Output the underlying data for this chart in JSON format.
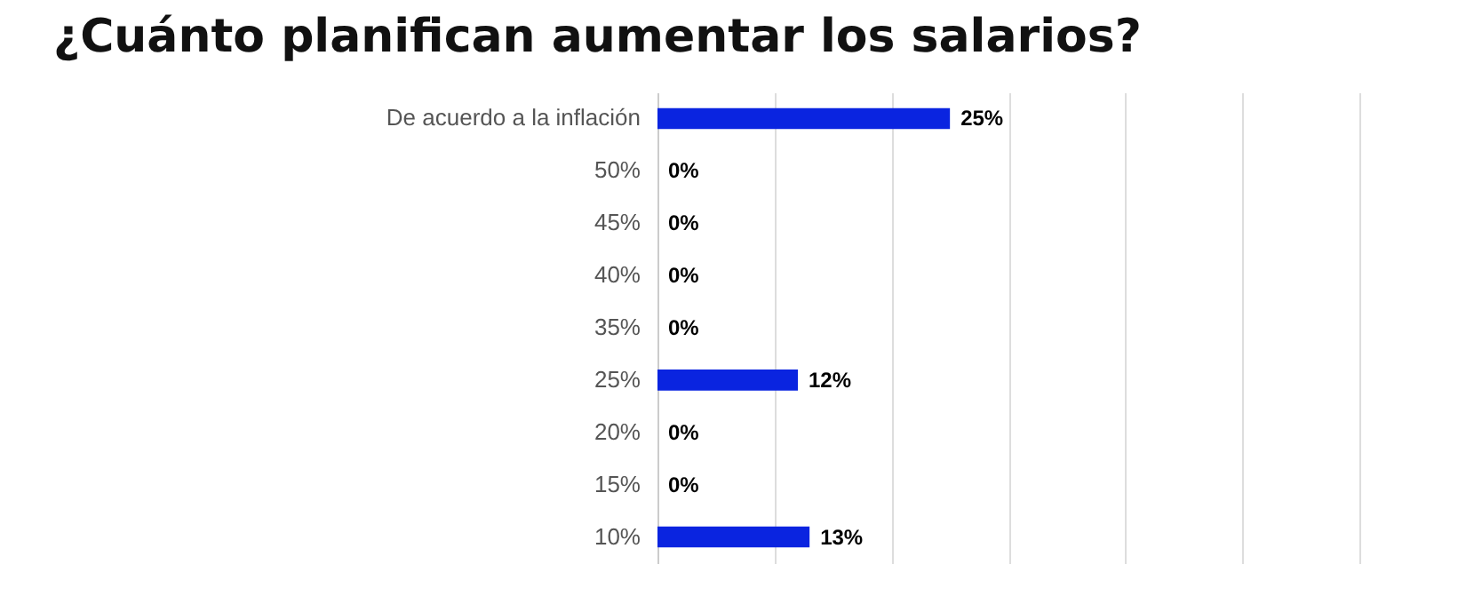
{
  "chart_data": {
    "type": "bar",
    "orientation": "horizontal",
    "title": "¿Cuánto planifican aumentar los salarios?",
    "categories": [
      "De acuerdo a la inflación",
      "50%",
      "45%",
      "40%",
      "35%",
      "25%",
      "20%",
      "15%",
      "10%"
    ],
    "values": [
      25,
      0,
      0,
      0,
      0,
      12,
      0,
      0,
      13
    ],
    "value_labels": [
      "25%",
      "0%",
      "0%",
      "0%",
      "0%",
      "12%",
      "0%",
      "0%",
      "13%"
    ],
    "color": "#0a24e0",
    "xlim": [
      0,
      60
    ],
    "xticks": [
      0,
      10,
      20,
      30,
      40,
      50,
      60
    ],
    "grid": "x",
    "tick_labels": "y"
  }
}
